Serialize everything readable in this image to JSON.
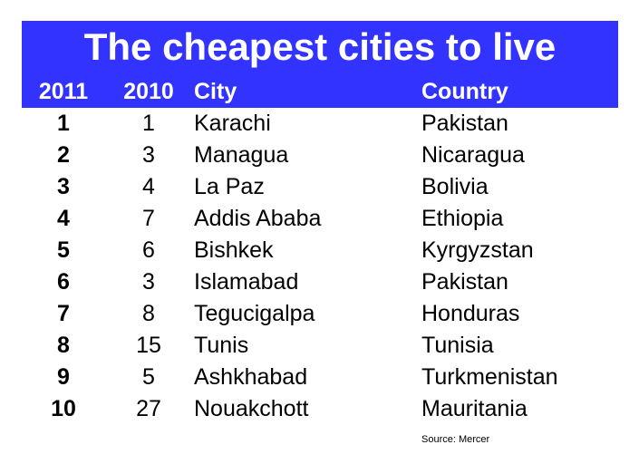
{
  "chart_data": {
    "type": "table",
    "title": "The cheapest cities to live",
    "columns": [
      "2011",
      "2010",
      "City",
      "Country"
    ],
    "rows": [
      {
        "rank2011": "1",
        "rank2010": "1",
        "city": "Karachi",
        "country": "Pakistan"
      },
      {
        "rank2011": "2",
        "rank2010": "3",
        "city": "Managua",
        "country": "Nicaragua"
      },
      {
        "rank2011": "3",
        "rank2010": "4",
        "city": "La Paz",
        "country": "Bolivia"
      },
      {
        "rank2011": "4",
        "rank2010": "7",
        "city": "Addis Ababa",
        "country": "Ethiopia"
      },
      {
        "rank2011": "5",
        "rank2010": "6",
        "city": "Bishkek",
        "country": "Kyrgyzstan"
      },
      {
        "rank2011": "6",
        "rank2010": "3",
        "city": "Islamabad",
        "country": "Pakistan"
      },
      {
        "rank2011": "7",
        "rank2010": "8",
        "city": "Tegucigalpa",
        "country": "Honduras"
      },
      {
        "rank2011": "8",
        "rank2010": "15",
        "city": "Tunis",
        "country": "Tunisia"
      },
      {
        "rank2011": "9",
        "rank2010": "5",
        "city": "Ashkhabad",
        "country": "Turkmenistan"
      },
      {
        "rank2011": "10",
        "rank2010": "27",
        "city": "Nouakchott",
        "country": "Mauritania"
      }
    ],
    "source": "Source: Mercer",
    "header_color": "#3333ff",
    "header_text_color": "#ffffff"
  }
}
